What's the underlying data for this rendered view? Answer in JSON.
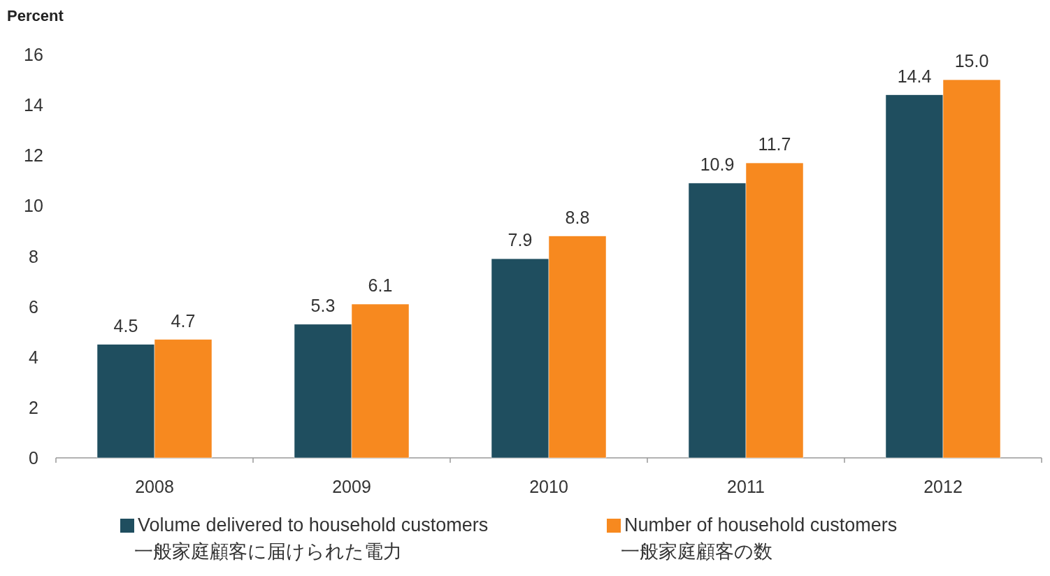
{
  "chart_data": {
    "type": "bar",
    "ylabel": "Percent",
    "categories": [
      "2008",
      "2009",
      "2010",
      "2011",
      "2012"
    ],
    "series": [
      {
        "name": "Volume delivered to household customers\n一般家庭顧客に届けられた電力",
        "color": "#1f4e5f",
        "values": [
          4.5,
          5.3,
          7.9,
          10.9,
          14.4
        ],
        "value_labels": [
          "4.5",
          "5.3",
          "7.9",
          "10.9",
          "14.4"
        ]
      },
      {
        "name": "Number of household customers\n一般家庭顧客の数",
        "color": "#f7891f",
        "values": [
          4.7,
          6.1,
          8.8,
          11.7,
          15.0
        ],
        "value_labels": [
          "4.7",
          "6.1",
          "8.8",
          "11.7",
          "15.0"
        ]
      }
    ],
    "ylim": [
      0,
      16
    ],
    "yticks": [
      0,
      2,
      4,
      6,
      8,
      10,
      12,
      14,
      16
    ],
    "legend": "bottom"
  }
}
